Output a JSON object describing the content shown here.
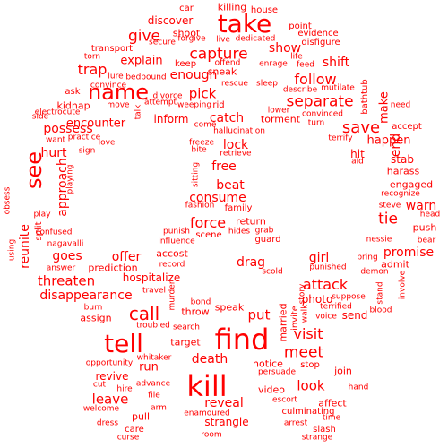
{
  "colors": {
    "text": "#ff0000",
    "background": "#ffffff"
  },
  "words": [
    "killing",
    "car",
    "house",
    "take",
    "point",
    "discover",
    "evidence",
    "shoot",
    "forgive",
    "give",
    "dedicated",
    "secure",
    "disfigure",
    "transport",
    "live",
    "show",
    "torn",
    "life",
    "capture",
    "offend",
    "enrage",
    "feed",
    "keep",
    "lure",
    "bedbound",
    "trap",
    "explain",
    "shift",
    "convince",
    "sneak",
    "enough",
    "follow",
    "name",
    "divorce",
    "sleep",
    "rescue",
    "mutilate",
    "describe",
    "ask",
    "attempt",
    "weeping",
    "lower",
    "kidnap",
    "move",
    "talk",
    "rid",
    "pick",
    "separate",
    "bathtub",
    "need",
    "side",
    "electrocute",
    "convinced",
    "make",
    "possess",
    "inform",
    "catch",
    "torment",
    "turn",
    "want",
    "practice",
    "save",
    "accept",
    "encounter",
    "come",
    "love",
    "hallucination",
    "sign",
    "end",
    "happen",
    "terrify",
    "freeze",
    "hurt",
    "bite",
    "retrieve",
    "lock",
    "hit",
    "aid",
    "see",
    "stab",
    "harass",
    "free",
    "approach",
    "sitting",
    "playing",
    "engaged",
    "beat",
    "recognize",
    "obsess",
    "consume",
    "fashion",
    "family",
    "warn",
    "steve",
    "tie",
    "play",
    "head",
    "split",
    "force",
    "return",
    "confused",
    "nagavalli",
    "scene",
    "grab",
    "hides",
    "reunite",
    "punish",
    "push",
    "nessie",
    "using",
    "goes",
    "offer",
    "guard",
    "influence",
    "promise",
    "bear",
    "accost",
    "drag",
    "girl",
    "bring",
    "admit",
    "answer",
    "prediction",
    "record",
    "scold",
    "punished",
    "threaten",
    "hospitalize",
    "demon",
    "involve",
    "stand",
    "attack",
    "travel",
    "murder",
    "photo",
    "suppose",
    "disappearance",
    "story",
    "terrified",
    "burn",
    "bond",
    "call",
    "throw",
    "speak",
    "invite",
    "voice",
    "send",
    "blood",
    "assign",
    "troubled",
    "put",
    "married",
    "walk",
    "target",
    "visit",
    "tell",
    "find",
    "search",
    "meet",
    "opportunity",
    "whitaker",
    "death",
    "notice",
    "stop",
    "persuade",
    "run",
    "revive",
    "advance",
    "join",
    "look",
    "hand",
    "kill",
    "cut",
    "hire",
    "leave",
    "reveal",
    "video",
    "affect",
    "file",
    "enamoured",
    "escort",
    "culminating",
    "arm",
    "welcome",
    "pull",
    "strangle",
    "time",
    "arrest",
    "dress",
    "care",
    "slash",
    "curse",
    "room",
    "strange"
  ]
}
